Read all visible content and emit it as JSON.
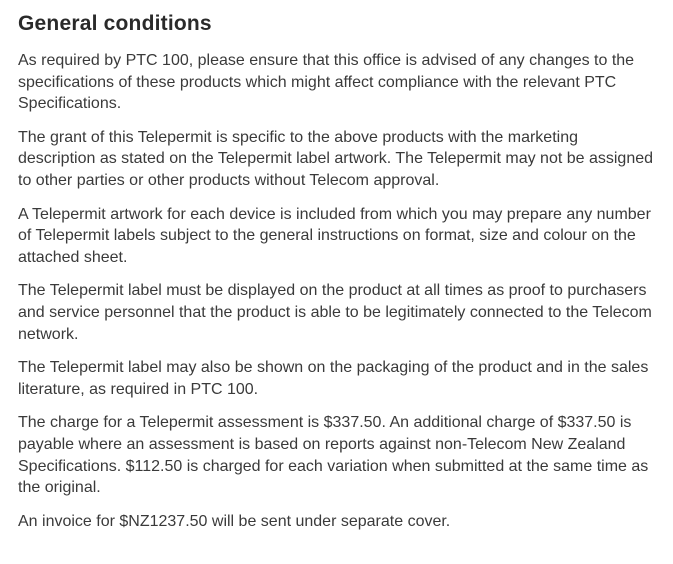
{
  "document": {
    "heading": "General conditions",
    "heading_fontsize": 21,
    "heading_fontweight": "bold",
    "body_fontsize": 16,
    "body_lineheight": 1.35,
    "text_color": "#3a3a3a",
    "heading_color": "#2a2a2a",
    "background_color": "#ffffff",
    "paragraphs": [
      "As required by PTC 100, please ensure that this office is advised of any changes to the specifications of these products which might affect compliance with the relevant PTC Specifications.",
      "The grant of this Telepermit is specific to the above products with the marketing description as stated on the Telepermit label artwork. The Telepermit may not be assigned to other parties or other products without Telecom approval.",
      "A Telepermit artwork for each device is included from which you may prepare any number of Telepermit labels subject to the general instructions on format, size and colour on the attached sheet.",
      "The Telepermit label must be displayed on the product at all times as proof to purchasers and service personnel that the product is able to be legitimately connected to the Telecom network.",
      "The Telepermit label may also be shown on the packaging of the product and in  the sales literature, as required in PTC 100.",
      "The charge for a Telepermit assessment is $337.50. An additional charge of $337.50 is payable where an assessment is based on reports against non-Telecom  New Zealand Specifications. $112.50 is charged for each variation when  submitted at the same time as the original.",
      "An invoice for $NZ1237.50 will be sent under separate cover."
    ]
  }
}
